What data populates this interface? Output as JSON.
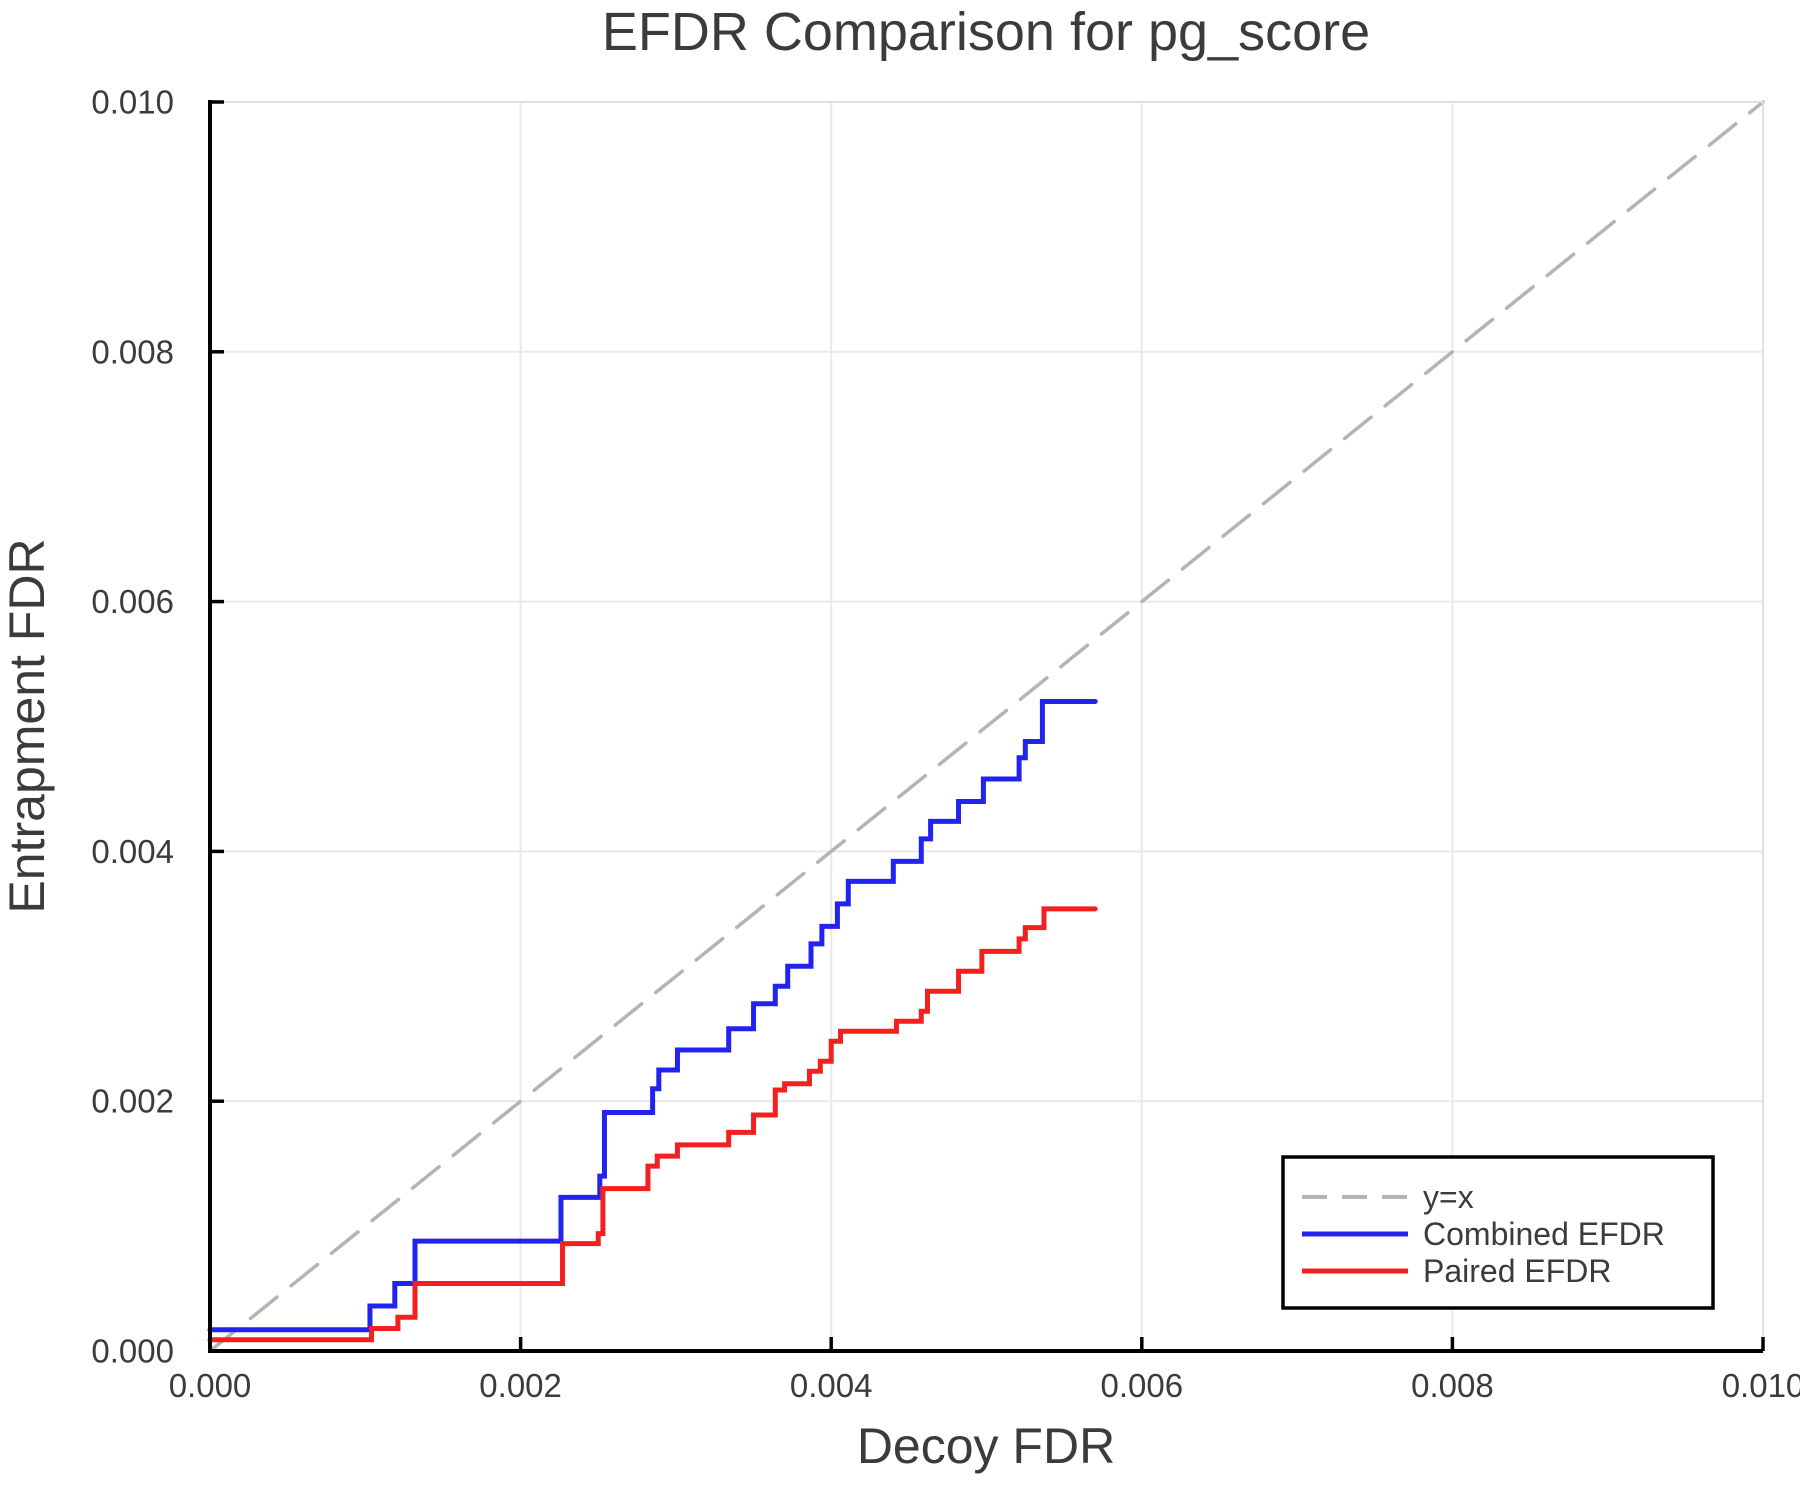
{
  "title": "EFDR Comparison for pg_score",
  "x_axis": {
    "label": "Decoy FDR",
    "tick_values": [
      0.0,
      0.002,
      0.004,
      0.006,
      0.008,
      0.01
    ],
    "tick_labels": [
      "0.000",
      "0.002",
      "0.004",
      "0.006",
      "0.008",
      "0.010"
    ]
  },
  "y_axis": {
    "label": "Entrapment FDR",
    "tick_values": [
      0.0,
      0.002,
      0.004,
      0.006,
      0.008,
      0.01
    ],
    "tick_labels": [
      "0.000",
      "0.002",
      "0.004",
      "0.006",
      "0.008",
      "0.010"
    ]
  },
  "legend": {
    "position": "lower right",
    "items": [
      "y=x",
      "Combined EFDR",
      "Paired EFDR"
    ]
  },
  "colors": {
    "identity": "#b4b4b4",
    "combined": "#2323f0",
    "paired": "#f42020",
    "text": "#3b3b3b",
    "grid": "#e9e9e9",
    "frame_light": "#e0e0e0",
    "spine": "#000000",
    "background": "#ffffff"
  },
  "chart_data": {
    "type": "line",
    "title": "EFDR Comparison for pg_score",
    "xlabel": "Decoy FDR",
    "ylabel": "Entrapment FDR",
    "xlim": [
      0.0,
      0.01
    ],
    "ylim": [
      0.0,
      0.01
    ],
    "grid": true,
    "legend_position": "lower right",
    "series": [
      {
        "name": "y=x",
        "style": "dashed",
        "color": "#b4b4b4",
        "points": [
          [
            0.0,
            0.0
          ],
          [
            0.01,
            0.01
          ]
        ]
      },
      {
        "name": "Combined EFDR",
        "style": "step",
        "color": "#2323f0",
        "points": [
          [
            0.0,
            0.00017
          ],
          [
            0.00103,
            0.00036
          ],
          [
            0.00119,
            0.00054
          ],
          [
            0.00132,
            0.00088
          ],
          [
            0.00226,
            0.00123
          ],
          [
            0.00251,
            0.0014
          ],
          [
            0.00254,
            0.00191
          ],
          [
            0.00285,
            0.0021
          ],
          [
            0.00289,
            0.00225
          ],
          [
            0.00301,
            0.00241
          ],
          [
            0.00334,
            0.00258
          ],
          [
            0.0035,
            0.00278
          ],
          [
            0.00364,
            0.00292
          ],
          [
            0.00372,
            0.00308
          ],
          [
            0.00387,
            0.00326
          ],
          [
            0.00394,
            0.0034
          ],
          [
            0.00404,
            0.00358
          ],
          [
            0.00411,
            0.00376
          ],
          [
            0.0044,
            0.00392
          ],
          [
            0.00458,
            0.0041
          ],
          [
            0.00464,
            0.00424
          ],
          [
            0.00482,
            0.0044
          ],
          [
            0.00498,
            0.00458
          ],
          [
            0.00521,
            0.00475
          ],
          [
            0.00525,
            0.00488
          ],
          [
            0.00536,
            0.0052
          ],
          [
            0.0057,
            0.0052
          ]
        ]
      },
      {
        "name": "Paired EFDR",
        "style": "step",
        "color": "#f42020",
        "points": [
          [
            0.0,
            9e-05
          ],
          [
            0.00104,
            0.00018
          ],
          [
            0.00121,
            0.00027
          ],
          [
            0.00132,
            0.00054
          ],
          [
            0.00227,
            0.00086
          ],
          [
            0.0025,
            0.00094
          ],
          [
            0.00253,
            0.0013
          ],
          [
            0.00282,
            0.00148
          ],
          [
            0.00288,
            0.00156
          ],
          [
            0.00301,
            0.00165
          ],
          [
            0.00334,
            0.00175
          ],
          [
            0.0035,
            0.00189
          ],
          [
            0.00364,
            0.00209
          ],
          [
            0.0037,
            0.00214
          ],
          [
            0.00386,
            0.00224
          ],
          [
            0.00393,
            0.00232
          ],
          [
            0.004,
            0.00248
          ],
          [
            0.00406,
            0.00256
          ],
          [
            0.00442,
            0.00264
          ],
          [
            0.00458,
            0.00272
          ],
          [
            0.00462,
            0.00288
          ],
          [
            0.00482,
            0.00304
          ],
          [
            0.00497,
            0.0032
          ],
          [
            0.00521,
            0.0033
          ],
          [
            0.00525,
            0.00339
          ],
          [
            0.00537,
            0.00354
          ],
          [
            0.0057,
            0.00354
          ]
        ]
      }
    ]
  }
}
